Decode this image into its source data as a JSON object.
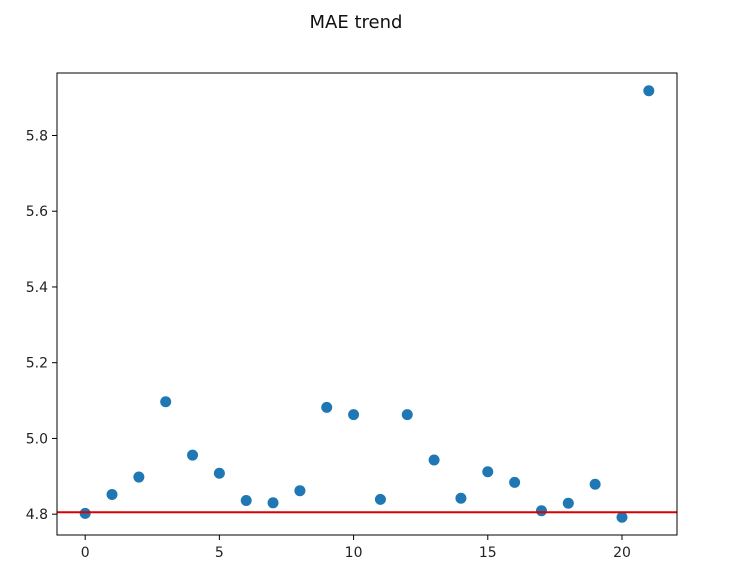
{
  "chart_data": {
    "type": "scatter",
    "title": "MAE trend",
    "xlabel": "",
    "ylabel": "",
    "xlim": [
      -1.05,
      22.05
    ],
    "ylim": [
      4.745,
      5.965
    ],
    "xticks": [
      0,
      5,
      10,
      15,
      20
    ],
    "xtick_labels": [
      "0",
      "5",
      "10",
      "15",
      "20"
    ],
    "yticks": [
      4.8,
      5.0,
      5.2,
      5.4,
      5.6,
      5.8
    ],
    "ytick_labels": [
      "4.8",
      "5.0",
      "5.2",
      "5.4",
      "5.6",
      "5.8"
    ],
    "grid": false,
    "series": [
      {
        "x": [
          0,
          1,
          2,
          3,
          4,
          5,
          6,
          7,
          8,
          9,
          10,
          11,
          12,
          13,
          14,
          15,
          16,
          17,
          18,
          19,
          20,
          21
        ],
        "values": [
          4.802,
          4.852,
          4.898,
          5.097,
          4.956,
          4.908,
          4.836,
          4.83,
          4.862,
          5.082,
          5.063,
          4.839,
          5.063,
          4.943,
          4.842,
          4.912,
          4.884,
          4.809,
          4.829,
          4.879,
          4.792,
          5.918
        ],
        "color": "#1f77b4"
      }
    ],
    "hline": {
      "y": 4.805,
      "color": "#dd0000"
    }
  }
}
